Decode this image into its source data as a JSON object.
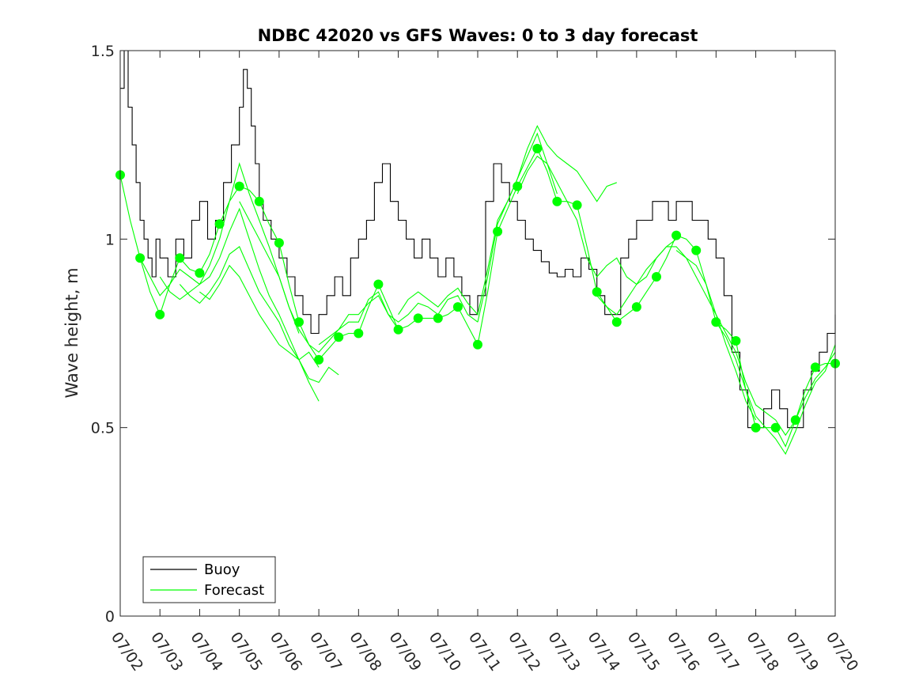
{
  "chart_data": {
    "type": "line",
    "title": "NDBC 42020 vs GFS Waves: 0 to 3 day forecast",
    "xlabel": "",
    "ylabel": "Wave height, m",
    "xlim": [
      "07/02",
      "07/20"
    ],
    "ylim": [
      0,
      1.5
    ],
    "x_ticks": [
      "07/02",
      "07/03",
      "07/04",
      "07/05",
      "07/06",
      "07/07",
      "07/08",
      "07/09",
      "07/10",
      "07/11",
      "07/12",
      "07/13",
      "07/14",
      "07/15",
      "07/16",
      "07/17",
      "07/18",
      "07/19",
      "07/20"
    ],
    "y_ticks": [
      "0",
      "0.5",
      "1",
      "1.5"
    ],
    "grid": false,
    "legend_position": "bottom-left",
    "colors": {
      "buoy": "#000000",
      "forecast": "#00ff00"
    },
    "series": [
      {
        "name": "Buoy",
        "style": "line",
        "x_day": [
          2.0,
          2.1,
          2.2,
          2.3,
          2.4,
          2.5,
          2.6,
          2.7,
          2.8,
          2.9,
          3.0,
          3.2,
          3.4,
          3.6,
          3.8,
          4.0,
          4.2,
          4.4,
          4.6,
          4.8,
          5.0,
          5.1,
          5.2,
          5.3,
          5.4,
          5.5,
          5.6,
          5.8,
          6.0,
          6.2,
          6.4,
          6.6,
          6.8,
          7.0,
          7.2,
          7.4,
          7.6,
          7.8,
          8.0,
          8.2,
          8.4,
          8.6,
          8.8,
          9.0,
          9.2,
          9.4,
          9.6,
          9.8,
          10.0,
          10.2,
          10.4,
          10.6,
          10.8,
          11.0,
          11.2,
          11.4,
          11.6,
          11.8,
          12.0,
          12.2,
          12.4,
          12.6,
          12.8,
          13.0,
          13.2,
          13.4,
          13.6,
          13.8,
          14.0,
          14.2,
          14.4,
          14.6,
          14.8,
          15.0,
          15.2,
          15.4,
          15.6,
          15.8,
          16.0,
          16.2,
          16.4,
          16.6,
          16.8,
          17.0,
          17.2,
          17.4,
          17.6,
          17.8,
          18.0,
          18.2,
          18.4,
          18.6,
          18.8,
          19.0,
          19.2,
          19.4,
          19.6,
          19.8,
          20.0
        ],
        "values": [
          1.4,
          1.5,
          1.35,
          1.25,
          1.15,
          1.05,
          1.0,
          0.95,
          0.9,
          1.0,
          0.95,
          0.9,
          1.0,
          0.95,
          1.05,
          1.1,
          1.0,
          1.05,
          1.15,
          1.25,
          1.35,
          1.45,
          1.4,
          1.3,
          1.2,
          1.1,
          1.05,
          1.0,
          0.95,
          0.9,
          0.85,
          0.8,
          0.75,
          0.8,
          0.85,
          0.9,
          0.85,
          0.95,
          1.0,
          1.05,
          1.15,
          1.2,
          1.1,
          1.05,
          1.0,
          0.95,
          1.0,
          0.95,
          0.9,
          0.95,
          0.9,
          0.85,
          0.8,
          0.85,
          1.1,
          1.2,
          1.15,
          1.1,
          1.05,
          1.0,
          0.97,
          0.94,
          0.91,
          0.9,
          0.92,
          0.9,
          0.95,
          0.92,
          0.85,
          0.8,
          0.8,
          0.95,
          1.0,
          1.05,
          1.05,
          1.1,
          1.1,
          1.05,
          1.1,
          1.1,
          1.05,
          1.05,
          1.0,
          0.95,
          0.85,
          0.7,
          0.6,
          0.5,
          0.5,
          0.55,
          0.6,
          0.55,
          0.5,
          0.5,
          0.6,
          0.65,
          0.7,
          0.75,
          0.8
        ]
      },
      {
        "name": "Forecast",
        "style": "line",
        "x_day": [
          2.0,
          2.25,
          2.5,
          2.75,
          3.0,
          3.25,
          3.5,
          3.75,
          4.0,
          4.25,
          4.5,
          4.75,
          5.0,
          5.25,
          5.5,
          5.75,
          6.0,
          6.25,
          6.5,
          6.75,
          7.0,
          7.25,
          7.5,
          7.75,
          8.0,
          8.25,
          8.5,
          8.75,
          9.0,
          9.25,
          9.5,
          9.75,
          10.0,
          10.25,
          10.5,
          10.75,
          11.0,
          11.25,
          11.5,
          11.75,
          12.0,
          12.25,
          12.5,
          12.75,
          13.0,
          13.25,
          13.5,
          13.75,
          14.0,
          14.25,
          14.5,
          14.75,
          15.0,
          15.25,
          15.5,
          15.75,
          16.0,
          16.25,
          16.5,
          16.75,
          17.0,
          17.25,
          17.5,
          17.75,
          18.0,
          18.25,
          18.5,
          18.75,
          19.0,
          19.25,
          19.5,
          19.75,
          20.0
        ],
        "values": [
          1.17,
          1.05,
          0.95,
          0.86,
          0.8,
          0.88,
          0.95,
          0.92,
          0.91,
          0.96,
          1.04,
          1.1,
          1.14,
          1.13,
          1.1,
          1.04,
          0.99,
          0.88,
          0.78,
          0.72,
          0.68,
          0.71,
          0.74,
          0.75,
          0.75,
          0.82,
          0.88,
          0.82,
          0.76,
          0.77,
          0.79,
          0.79,
          0.79,
          0.8,
          0.82,
          0.77,
          0.72,
          0.86,
          1.02,
          1.08,
          1.14,
          1.19,
          1.24,
          1.18,
          1.1,
          1.1,
          1.09,
          0.98,
          0.86,
          0.82,
          0.78,
          0.8,
          0.82,
          0.86,
          0.9,
          0.95,
          1.01,
          1.0,
          0.97,
          0.88,
          0.78,
          0.76,
          0.73,
          0.6,
          0.5,
          0.5,
          0.5,
          0.45,
          0.52,
          0.6,
          0.66,
          0.67,
          0.67
        ]
      },
      {
        "name": "",
        "style": "line",
        "x_day": [
          2.5,
          2.75,
          3.0,
          3.25,
          3.5,
          3.75,
          4.0,
          4.25,
          4.5,
          4.75,
          5.0,
          5.25,
          5.5,
          5.75,
          6.0,
          6.25,
          6.5
        ],
        "values": [
          0.95,
          0.9,
          0.85,
          0.88,
          0.92,
          0.9,
          0.88,
          0.93,
          1.0,
          1.1,
          1.2,
          1.12,
          1.05,
          0.98,
          0.9,
          0.82,
          0.75
        ]
      },
      {
        "name": "",
        "style": "line",
        "x_day": [
          3.0,
          3.25,
          3.5,
          3.75,
          4.0,
          4.25,
          4.5,
          4.75,
          5.0,
          5.25,
          5.5,
          5.75,
          6.0,
          6.25,
          6.5,
          6.75,
          7.0
        ],
        "values": [
          0.9,
          0.86,
          0.84,
          0.86,
          0.88,
          0.9,
          0.95,
          1.02,
          1.08,
          1.0,
          0.92,
          0.85,
          0.8,
          0.74,
          0.68,
          0.62,
          0.57
        ]
      },
      {
        "name": "",
        "style": "line",
        "x_day": [
          3.5,
          3.75,
          4.0,
          4.25,
          4.5,
          4.75,
          5.0,
          5.25,
          5.5,
          5.75,
          6.0,
          6.25,
          6.5,
          6.75,
          7.0,
          7.25,
          7.5
        ],
        "values": [
          0.88,
          0.85,
          0.83,
          0.86,
          0.9,
          0.96,
          0.98,
          0.92,
          0.86,
          0.82,
          0.78,
          0.72,
          0.68,
          0.63,
          0.62,
          0.66,
          0.64
        ]
      },
      {
        "name": "",
        "style": "line",
        "x_day": [
          4.0,
          4.25,
          4.5,
          4.75,
          5.0,
          5.25,
          5.5,
          5.75,
          6.0,
          6.25,
          6.5,
          6.75,
          7.0
        ],
        "values": [
          0.86,
          0.84,
          0.88,
          0.93,
          0.9,
          0.85,
          0.8,
          0.76,
          0.72,
          0.7,
          0.68,
          0.7,
          0.66
        ]
      },
      {
        "name": "",
        "style": "line",
        "x_day": [
          5.0,
          5.25,
          5.5,
          5.75,
          6.0,
          6.25,
          6.5,
          6.75,
          7.0,
          7.25,
          7.5,
          7.75,
          8.0,
          8.25,
          8.5,
          8.75,
          9.0
        ],
        "values": [
          1.1,
          1.05,
          1.0,
          0.95,
          0.9,
          0.82,
          0.76,
          0.72,
          0.7,
          0.73,
          0.76,
          0.78,
          0.78,
          0.84,
          0.86,
          0.8,
          0.76
        ]
      },
      {
        "name": "",
        "style": "line",
        "x_day": [
          7.0,
          7.25,
          7.5,
          7.75,
          8.0,
          8.25,
          8.5,
          8.75,
          9.0,
          9.25,
          9.5,
          9.75,
          10.0,
          10.25,
          10.5,
          10.75,
          11.0
        ],
        "values": [
          0.72,
          0.74,
          0.76,
          0.8,
          0.8,
          0.83,
          0.85,
          0.8,
          0.78,
          0.8,
          0.83,
          0.82,
          0.8,
          0.84,
          0.85,
          0.8,
          0.78
        ]
      },
      {
        "name": "",
        "style": "line",
        "x_day": [
          9.0,
          9.25,
          9.5,
          9.75,
          10.0,
          10.25,
          10.5,
          10.75,
          11.0,
          11.25,
          11.5,
          11.75,
          12.0,
          12.25,
          12.5,
          12.75,
          13.0
        ],
        "values": [
          0.8,
          0.84,
          0.86,
          0.84,
          0.82,
          0.85,
          0.87,
          0.83,
          0.8,
          0.92,
          1.05,
          1.1,
          1.16,
          1.22,
          1.28,
          1.2,
          1.12
        ]
      },
      {
        "name": "",
        "style": "line",
        "x_day": [
          11.0,
          11.25,
          11.5,
          11.75,
          12.0,
          12.25,
          12.5,
          12.75,
          13.0,
          13.25,
          13.5,
          13.75,
          14.0,
          14.25,
          14.5
        ],
        "values": [
          0.78,
          0.9,
          1.04,
          1.1,
          1.16,
          1.24,
          1.3,
          1.25,
          1.22,
          1.2,
          1.18,
          1.14,
          1.1,
          1.14,
          1.15
        ]
      },
      {
        "name": "",
        "style": "line",
        "x_day": [
          12.0,
          12.25,
          12.5,
          12.75,
          13.0,
          13.25,
          13.5,
          13.75,
          14.0,
          14.25,
          14.5,
          14.75,
          15.0,
          15.25,
          15.5,
          15.75,
          16.0
        ],
        "values": [
          1.12,
          1.18,
          1.22,
          1.2,
          1.15,
          1.1,
          1.05,
          0.95,
          0.9,
          0.93,
          0.95,
          0.9,
          0.88,
          0.9,
          0.95,
          0.98,
          1.0
        ]
      },
      {
        "name": "",
        "style": "line",
        "x_day": [
          14.0,
          14.25,
          14.5,
          14.75,
          15.0,
          15.25,
          15.5,
          15.75,
          16.0,
          16.25,
          16.5,
          16.75,
          17.0,
          17.25,
          17.5,
          17.75,
          18.0
        ],
        "values": [
          0.85,
          0.82,
          0.8,
          0.84,
          0.88,
          0.92,
          0.95,
          0.98,
          0.98,
          0.95,
          0.9,
          0.85,
          0.8,
          0.72,
          0.65,
          0.57,
          0.52
        ]
      },
      {
        "name": "",
        "style": "line",
        "x_day": [
          16.0,
          16.25,
          16.5,
          16.75,
          17.0,
          17.25,
          17.5,
          17.75,
          18.0,
          18.25,
          18.5,
          18.75,
          19.0,
          19.25,
          19.5,
          19.75,
          20.0
        ],
        "values": [
          0.97,
          0.95,
          0.93,
          0.88,
          0.8,
          0.75,
          0.7,
          0.62,
          0.56,
          0.54,
          0.52,
          0.48,
          0.52,
          0.58,
          0.63,
          0.66,
          0.7
        ]
      },
      {
        "name": "",
        "style": "line",
        "x_day": [
          17.0,
          17.25,
          17.5,
          17.75,
          18.0,
          18.25,
          18.5,
          18.75,
          19.0,
          19.25,
          19.5,
          19.75,
          20.0
        ],
        "values": [
          0.78,
          0.74,
          0.68,
          0.6,
          0.53,
          0.5,
          0.47,
          0.43,
          0.49,
          0.56,
          0.62,
          0.65,
          0.72
        ]
      },
      {
        "name": "",
        "style": "markers",
        "x_day": [
          2.0,
          2.5,
          3.0,
          3.5,
          4.0,
          4.5,
          5.0,
          5.5,
          6.0,
          6.5,
          7.0,
          7.5,
          8.0,
          8.5,
          9.0,
          9.5,
          10.0,
          10.5,
          11.0,
          11.5,
          12.0,
          12.5,
          13.0,
          13.5,
          14.0,
          14.5,
          15.0,
          15.5,
          16.0,
          16.5,
          17.0,
          17.5,
          18.0,
          18.5,
          19.0,
          19.5,
          20.0
        ],
        "values": [
          1.17,
          0.95,
          0.8,
          0.95,
          0.91,
          1.04,
          1.14,
          1.1,
          0.99,
          0.78,
          0.68,
          0.74,
          0.75,
          0.88,
          0.76,
          0.79,
          0.79,
          0.82,
          0.72,
          1.02,
          1.14,
          1.24,
          1.1,
          1.09,
          0.86,
          0.78,
          0.82,
          0.9,
          1.01,
          0.97,
          0.78,
          0.73,
          0.5,
          0.5,
          0.52,
          0.66,
          0.67
        ]
      }
    ]
  },
  "legend": {
    "items": [
      {
        "label": "Buoy",
        "color": "#000000"
      },
      {
        "label": "Forecast",
        "color": "#00ff00"
      }
    ]
  }
}
